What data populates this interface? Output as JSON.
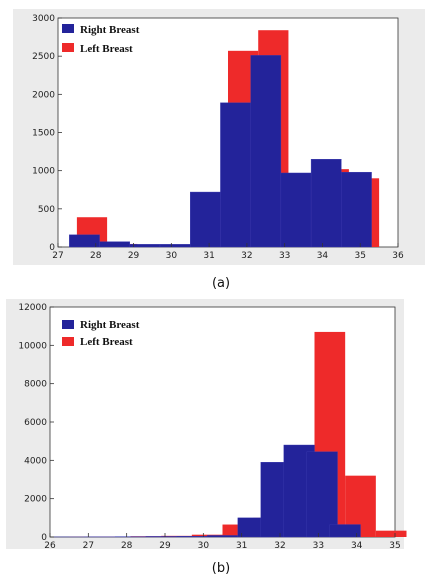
{
  "chart_data": [
    {
      "type": "bar",
      "caption": "(a)",
      "xlim": [
        27,
        36
      ],
      "ylim": [
        0,
        3000
      ],
      "xticks": [
        27,
        28,
        29,
        30,
        31,
        32,
        33,
        34,
        35,
        36
      ],
      "yticks": [
        0,
        500,
        1000,
        1500,
        2000,
        2500,
        3000
      ],
      "legend": "top-left",
      "bin_width": 0.8,
      "series": [
        {
          "name": "Left Breast",
          "color": "#ee2a2a",
          "x": [
            27.9,
            28.7,
            29.5,
            30.3,
            31.1,
            31.9,
            32.7,
            33.5,
            34.3,
            35.1
          ],
          "values": [
            390,
            40,
            30,
            30,
            630,
            2570,
            2840,
            920,
            1020,
            900
          ]
        },
        {
          "name": "Right Breast",
          "color": "#23239a",
          "x": [
            27.7,
            28.5,
            29.3,
            30.1,
            30.9,
            31.7,
            32.5,
            33.3,
            34.1,
            34.9
          ],
          "values": [
            160,
            70,
            35,
            35,
            720,
            1890,
            2510,
            970,
            1150,
            980
          ]
        }
      ]
    },
    {
      "type": "bar",
      "caption": "(b)",
      "xlim": [
        26,
        35
      ],
      "ylim": [
        0,
        12000
      ],
      "xticks": [
        26,
        27,
        28,
        29,
        30,
        31,
        32,
        33,
        34,
        35
      ],
      "yticks": [
        0,
        2000,
        4000,
        6000,
        8000,
        10000,
        12000
      ],
      "legend": "top-left",
      "bin_width": 0.8,
      "series": [
        {
          "name": "Left Breast",
          "color": "#ee2a2a",
          "x": [
            26.9,
            27.7,
            28.5,
            29.3,
            30.1,
            30.9,
            31.7,
            32.5,
            33.3,
            34.1,
            34.9
          ],
          "values": [
            10,
            20,
            40,
            60,
            120,
            650,
            1000,
            2400,
            10700,
            3200,
            330
          ]
        },
        {
          "name": "Right Breast",
          "color": "#23239a",
          "x": [
            26.5,
            27.3,
            28.1,
            28.9,
            29.7,
            30.5,
            31.3,
            31.9,
            32.5,
            33.1,
            33.7
          ],
          "values": [
            5,
            10,
            20,
            30,
            40,
            80,
            1000,
            3900,
            4800,
            4450,
            650
          ]
        }
      ]
    }
  ]
}
